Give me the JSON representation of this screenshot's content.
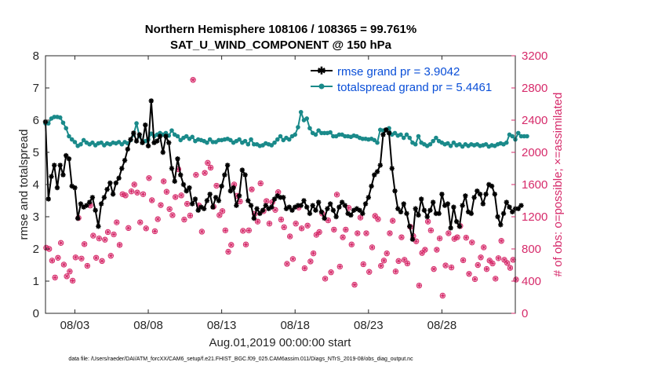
{
  "chart_data": {
    "type": "line",
    "title_line1": "Northern Hemisphere 108106 / 108365 = 99.761%",
    "title_line2": "SAT_U_WIND_COMPONENT @ 150 hPa",
    "xlabel": "Aug.01,2019 00:00:00 start",
    "ylabel_left": "rmse and totalspread",
    "ylabel_right": "# of obs: o=possible; ×=assimilated",
    "x_range_days": [
      1,
      33
    ],
    "ylim_left": [
      0,
      8
    ],
    "ylim_right": [
      0,
      3200
    ],
    "yticks_left": [
      "0",
      "1",
      "2",
      "3",
      "4",
      "5",
      "6",
      "7",
      "8"
    ],
    "yticks_right": [
      "0",
      "400",
      "800",
      "1200",
      "1600",
      "2000",
      "2400",
      "2800",
      "3200"
    ],
    "xticks": [
      {
        "day": 3,
        "label": "08/03"
      },
      {
        "day": 8,
        "label": "08/08"
      },
      {
        "day": 13,
        "label": "08/13"
      },
      {
        "day": 18,
        "label": "08/18"
      },
      {
        "day": 23,
        "label": "08/23"
      },
      {
        "day": 28,
        "label": "08/28"
      }
    ],
    "legend": [
      {
        "label": "rmse grand pr = 3.9042",
        "color": "#000000"
      },
      {
        "label": "totalspread grand pr = 5.4461",
        "color": "#1a8a8a"
      }
    ],
    "colors": {
      "rmse": "#000000",
      "spread": "#1a8a8a",
      "obs": "#d62a6a"
    },
    "series": [
      {
        "name": "rmse",
        "values": [
          5.95,
          3.55,
          4.25,
          4.6,
          3.9,
          4.6,
          4.3,
          4.9,
          4.8,
          3.95,
          3.9,
          2.95,
          3.4,
          3.3,
          3.35,
          3.45,
          3.6,
          3.2,
          2.7,
          3.4,
          3.6,
          3.85,
          4.05,
          3.7,
          4.05,
          4.2,
          4.5,
          4.75,
          5.1,
          5.4,
          5.6,
          5.35,
          5.55,
          5.3,
          5.85,
          5.2,
          6.6,
          5.3,
          5.35,
          5.5,
          5.0,
          5.5,
          5.3,
          4.5,
          4.1,
          4.8,
          4.3,
          4.0,
          3.8,
          3.9,
          3.4,
          3.55,
          3.2,
          3.3,
          3.25,
          3.5,
          3.7,
          3.3,
          3.6,
          3.5,
          3.95,
          4.3,
          4.6,
          3.8,
          3.9,
          3.35,
          3.65,
          4.45,
          4.3,
          3.5,
          3.35,
          2.95,
          3.25,
          3.1,
          3.2,
          3.35,
          3.25,
          3.3,
          3.55,
          3.65,
          3.6,
          3.6,
          3.25,
          3.3,
          3.2,
          3.3,
          3.35,
          3.35,
          3.5,
          3.3,
          3.1,
          3.35,
          3.2,
          3.45,
          3.15,
          2.95,
          3.25,
          3.4,
          3.2,
          3.0,
          3.3,
          3.45,
          3.35,
          3.1,
          3.05,
          3.2,
          3.25,
          3.2,
          3.1,
          3.4,
          3.6,
          3.95,
          4.3,
          4.4,
          4.6,
          5.55,
          5.7,
          5.6,
          4.5,
          3.8,
          3.25,
          3.15,
          3.4,
          3.1,
          2.7,
          2.3,
          3.25,
          3.05,
          3.55,
          3.2,
          3.0,
          3.2,
          3.45,
          3.1,
          3.1,
          3.7,
          3.35,
          3.4,
          2.65,
          3.3,
          2.85,
          2.7,
          3.35,
          3.65,
          3.15,
          3.1,
          3.6,
          3.8,
          3.7,
          3.4,
          3.7,
          4.0,
          3.95,
          3.7,
          3.0,
          2.75,
          3.1,
          3.45,
          3.3,
          3.15,
          3.25,
          3.25,
          3.35
        ],
        "start_day": 1.0,
        "step_days": 0.2
      },
      {
        "name": "totalspread",
        "values": [
          5.9,
          5.9,
          6.05,
          6.1,
          6.1,
          6.08,
          5.92,
          5.75,
          5.5,
          5.4,
          5.32,
          5.2,
          5.25,
          5.38,
          5.3,
          5.25,
          5.3,
          5.22,
          5.28,
          5.3,
          5.22,
          5.28,
          5.25,
          5.3,
          5.28,
          5.32,
          5.25,
          5.32,
          5.28,
          5.38,
          5.55,
          5.9,
          5.5,
          5.3,
          5.35,
          5.4,
          5.58,
          5.5,
          5.55,
          5.6,
          5.55,
          5.6,
          5.52,
          5.68,
          5.55,
          5.5,
          5.38,
          5.45,
          5.5,
          5.42,
          5.48,
          5.35,
          5.4,
          5.38,
          5.35,
          5.3,
          5.4,
          5.32,
          5.32,
          5.38,
          5.38,
          5.4,
          5.42,
          5.38,
          5.3,
          5.35,
          5.4,
          5.3,
          5.35,
          5.25,
          5.4,
          5.25,
          5.25,
          5.2,
          5.22,
          5.28,
          5.25,
          5.22,
          5.3,
          5.4,
          5.5,
          5.38,
          5.45,
          5.4,
          5.5,
          5.55,
          5.78,
          6.25,
          6.0,
          6.05,
          5.75,
          5.6,
          5.55,
          5.68,
          5.6,
          5.6,
          5.6,
          5.62,
          5.5,
          5.5,
          5.55,
          5.55,
          5.5,
          5.5,
          5.48,
          5.52,
          5.5,
          5.45,
          5.42,
          5.42,
          5.4,
          5.42,
          5.38,
          5.3,
          5.7,
          5.68,
          5.7,
          5.75,
          5.55,
          5.6,
          5.52,
          5.55,
          5.45,
          5.55,
          5.45,
          5.3,
          5.25,
          5.5,
          5.3,
          5.25,
          5.2,
          5.25,
          5.35,
          5.45,
          5.35,
          5.3,
          5.25,
          5.28,
          5.2,
          5.3,
          5.22,
          5.25,
          5.18,
          5.25,
          5.2,
          5.25,
          5.22,
          5.25,
          5.2,
          5.22,
          5.25,
          5.18,
          5.22,
          5.2,
          5.25,
          5.28,
          5.25,
          5.3,
          5.55,
          5.5,
          5.4,
          5.6,
          5.5,
          5.5,
          5.5
        ],
        "start_day": 1.0,
        "step_days": 0.2
      },
      {
        "name": "obs_possible",
        "points": [
          [
            1.05,
            815
          ],
          [
            1.25,
            800
          ],
          [
            1.45,
            655
          ],
          [
            1.65,
            445
          ],
          [
            1.85,
            690
          ],
          [
            2.05,
            875
          ],
          [
            2.25,
            605
          ],
          [
            2.45,
            460
          ],
          [
            2.65,
            520
          ],
          [
            2.85,
            405
          ],
          [
            3.05,
            695
          ],
          [
            3.25,
            1185
          ],
          [
            3.45,
            680
          ],
          [
            3.65,
            860
          ],
          [
            3.85,
            590
          ],
          [
            4.05,
            1340
          ],
          [
            4.25,
            965
          ],
          [
            4.45,
            690
          ],
          [
            4.65,
            930
          ],
          [
            4.85,
            650
          ],
          [
            5.05,
            915
          ],
          [
            5.25,
            1010
          ],
          [
            5.45,
            715
          ],
          [
            5.65,
            980
          ],
          [
            5.85,
            1130
          ],
          [
            6.05,
            850
          ],
          [
            6.25,
            1480
          ],
          [
            6.45,
            1465
          ],
          [
            6.65,
            1060
          ],
          [
            6.85,
            1515
          ],
          [
            7.05,
            1600
          ],
          [
            7.25,
            1500
          ],
          [
            7.45,
            1130
          ],
          [
            7.65,
            1480
          ],
          [
            7.85,
            1055
          ],
          [
            8.05,
            1680
          ],
          [
            8.25,
            1405
          ],
          [
            8.45,
            1020
          ],
          [
            8.65,
            1170
          ],
          [
            8.85,
            1345
          ],
          [
            9.05,
            1640
          ],
          [
            9.25,
            1510
          ],
          [
            9.45,
            1295
          ],
          [
            9.65,
            1220
          ],
          [
            9.85,
            1445
          ],
          [
            10.05,
            1790
          ],
          [
            10.25,
            1465
          ],
          [
            10.45,
            1165
          ],
          [
            10.65,
            1360
          ],
          [
            10.85,
            1215
          ],
          [
            11.05,
            2900
          ],
          [
            11.25,
            1720
          ],
          [
            11.45,
            1340
          ],
          [
            11.65,
            1015
          ],
          [
            11.85,
            1745
          ],
          [
            12.05,
            1870
          ],
          [
            12.25,
            1810
          ],
          [
            12.45,
            1325
          ],
          [
            12.65,
            1585
          ],
          [
            12.85,
            1220
          ],
          [
            13.05,
            1270
          ],
          [
            13.25,
            1030
          ],
          [
            13.45,
            765
          ],
          [
            13.65,
            850
          ],
          [
            13.85,
            1600
          ],
          [
            14.05,
            1460
          ],
          [
            14.25,
            1390
          ],
          [
            14.45,
            1025
          ],
          [
            14.65,
            855
          ],
          [
            14.85,
            1030
          ],
          [
            15.05,
            1540
          ],
          [
            15.25,
            1235
          ],
          [
            15.45,
            1140
          ],
          [
            15.65,
            1615
          ],
          [
            15.85,
            1270
          ],
          [
            16.05,
            1395
          ],
          [
            16.25,
            1115
          ],
          [
            16.45,
            1380
          ],
          [
            16.65,
            1285
          ],
          [
            16.85,
            1505
          ],
          [
            17.05,
            1165
          ],
          [
            17.25,
            1070
          ],
          [
            17.45,
            615
          ],
          [
            17.65,
            955
          ],
          [
            17.85,
            675
          ],
          [
            18.05,
            1115
          ],
          [
            18.25,
            1315
          ],
          [
            18.45,
            1055
          ],
          [
            18.65,
            560
          ],
          [
            18.85,
            1090
          ],
          [
            19.05,
            645
          ],
          [
            19.25,
            745
          ],
          [
            19.45,
            975
          ],
          [
            19.65,
            1010
          ],
          [
            19.85,
            1240
          ],
          [
            20.05,
            430
          ],
          [
            20.25,
            1155
          ],
          [
            20.45,
            510
          ],
          [
            20.65,
            1040
          ],
          [
            20.85,
            1475
          ],
          [
            21.05,
            580
          ],
          [
            21.25,
            945
          ],
          [
            21.45,
            1040
          ],
          [
            21.65,
            1310
          ],
          [
            21.85,
            855
          ],
          [
            22.05,
            355
          ],
          [
            22.25,
            995
          ],
          [
            22.45,
            1190
          ],
          [
            22.65,
            610
          ],
          [
            22.85,
            995
          ],
          [
            23.05,
            515
          ],
          [
            23.25,
            820
          ],
          [
            23.45,
            1210
          ],
          [
            23.65,
            1170
          ],
          [
            23.85,
            590
          ],
          [
            24.05,
            655
          ],
          [
            24.25,
            745
          ],
          [
            24.45,
            995
          ],
          [
            24.65,
            1150
          ],
          [
            24.85,
            520
          ],
          [
            25.05,
            650
          ],
          [
            25.25,
            945
          ],
          [
            25.45,
            665
          ],
          [
            25.65,
            620
          ],
          [
            25.85,
            1075
          ],
          [
            26.05,
            960
          ],
          [
            26.25,
            895
          ],
          [
            26.45,
            345
          ],
          [
            26.65,
            750
          ],
          [
            26.85,
            790
          ],
          [
            27.05,
            1140
          ],
          [
            27.25,
            1030
          ],
          [
            27.45,
            550
          ],
          [
            27.65,
            790
          ],
          [
            27.85,
            930
          ],
          [
            28.05,
            220
          ],
          [
            28.25,
            595
          ],
          [
            28.45,
            995
          ],
          [
            28.65,
            570
          ],
          [
            28.85,
            925
          ],
          [
            29.05,
            945
          ],
          [
            29.25,
            1085
          ],
          [
            29.45,
            660
          ],
          [
            29.65,
            940
          ],
          [
            29.85,
            490
          ],
          [
            30.05,
            880
          ],
          [
            30.25,
            425
          ],
          [
            30.45,
            600
          ],
          [
            30.65,
            695
          ],
          [
            30.85,
            820
          ],
          [
            31.05,
            550
          ],
          [
            31.25,
            655
          ],
          [
            31.45,
            620
          ],
          [
            31.65,
            430
          ],
          [
            31.85,
            685
          ],
          [
            32.05,
            900
          ],
          [
            32.25,
            665
          ],
          [
            32.45,
            625
          ],
          [
            32.65,
            565
          ],
          [
            32.85,
            665
          ],
          [
            33.05,
            420
          ]
        ]
      }
    ],
    "annotations": [
      "data file: /Users/raeder/DAI/ATM_forcXX/CAM6_setup/f.e21.FHIST_BGC.f09_025.CAM6assim.011/Diags_NTrS_2019-08/obs_diag_output.nc"
    ]
  }
}
